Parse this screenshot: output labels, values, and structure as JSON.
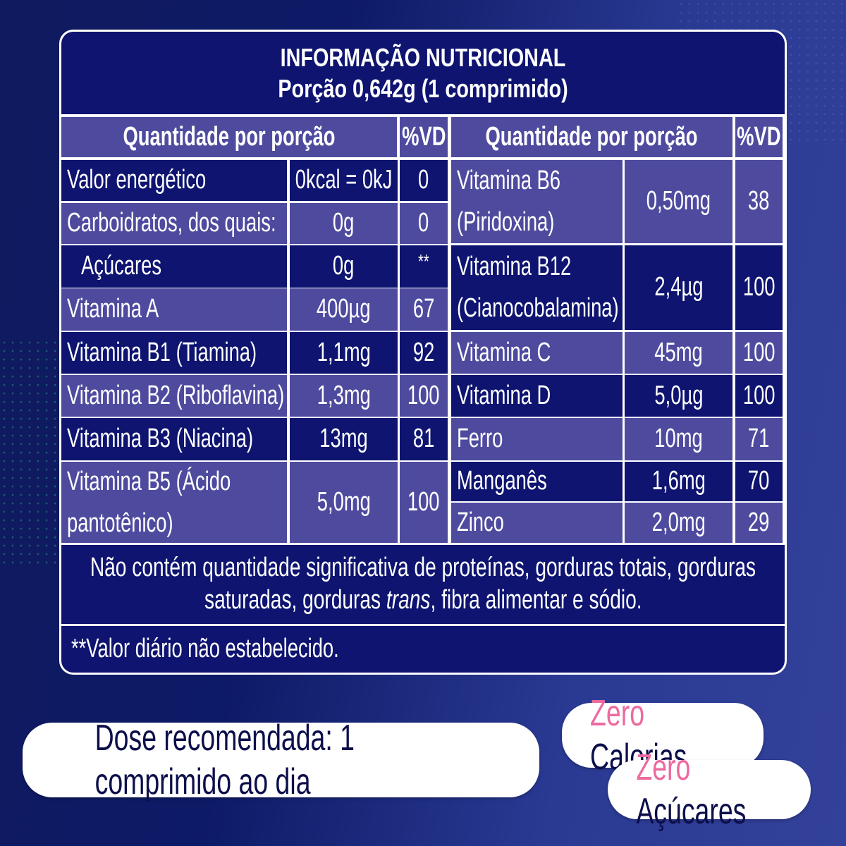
{
  "colors": {
    "dark": "#0e1470",
    "purple": "#4e4b9f",
    "accent_pink": "#ec6aa0"
  },
  "table": {
    "title": "INFORMAÇÃO NUTRICIONAL",
    "portion": "Porção 0,642g (1 comprimido)",
    "col_header_qty": "Quantidade por porção",
    "col_header_vd": "%VD",
    "left_rows": [
      {
        "name": "Valor energético",
        "amount": "0kcal = 0kJ",
        "vd": "0"
      },
      {
        "name": "Carboidratos, dos quais:",
        "amount": "0g",
        "vd": "0"
      },
      {
        "name": "Açúcares",
        "amount": "0g",
        "vd": "**"
      },
      {
        "name": "Vitamina A",
        "amount": "400µg",
        "vd": "67"
      },
      {
        "name": "Vitamina B1 (Tiamina)",
        "amount": "1,1mg",
        "vd": "92"
      },
      {
        "name": "Vitamina B2 (Riboflavina)",
        "amount": "1,3mg",
        "vd": "100"
      },
      {
        "name": "Vitamina B3 (Niacina)",
        "amount": "13mg",
        "vd": "81"
      },
      {
        "name": "Vitamina B5 (Ácido",
        "name2": "pantotênico)",
        "amount": "5,0mg",
        "vd": "100"
      }
    ],
    "right_rows": [
      {
        "name": "Vitamina B6",
        "name2": "(Piridoxina)",
        "amount": "0,50mg",
        "vd": "38"
      },
      {
        "name": "Vitamina B12",
        "name2": "(Cianocobalamina)",
        "amount": "2,4µg",
        "vd": "100"
      },
      {
        "name": "Vitamina C",
        "amount": "45mg",
        "vd": "100"
      },
      {
        "name": "Vitamina D",
        "amount": "5,0µg",
        "vd": "100"
      },
      {
        "name": "Ferro",
        "amount": "10mg",
        "vd": "71"
      },
      {
        "name": "Manganês",
        "amount": "1,6mg",
        "vd": "70"
      },
      {
        "name": "Zinco",
        "amount": "2,0mg",
        "vd": "29"
      }
    ],
    "footer_line1": "Não contém quantidade significativa de proteínas, gorduras totais, gorduras",
    "footer_line2_a": "saturadas, gorduras ",
    "footer_line2_italic": "trans",
    "footer_line2_b": ", fibra alimentar e sódio.",
    "note": "**Valor diário não estabelecido."
  },
  "badges": {
    "dose": "Dose recomendada: 1 comprimido ao dia",
    "zero": "Zero",
    "calorias": "Calorias",
    "acucares": "Açúcares"
  }
}
